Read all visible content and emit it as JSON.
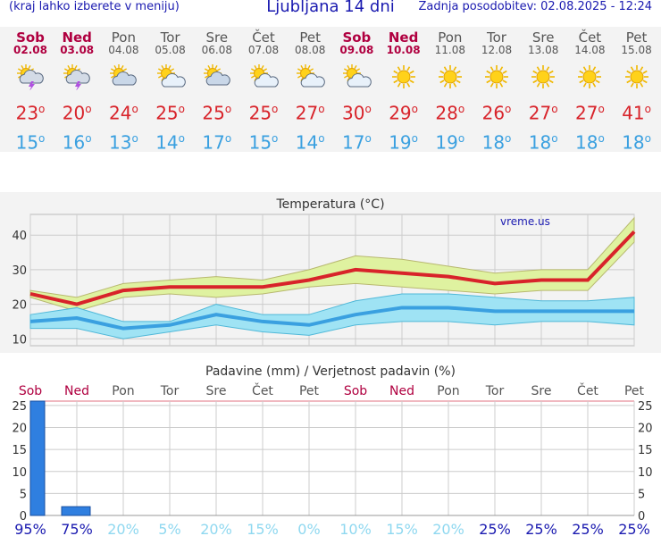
{
  "header": {
    "note": "(kraj lahko izberete v meniju)",
    "title": "Ljubljana 14 dni",
    "updated": "Zadnja posodobitev: 02.08.2025 - 12:24"
  },
  "days": [
    {
      "name": "Sob",
      "date": "02.08",
      "weekend": true,
      "icon": "thunderstorm-icon",
      "tmax": "23",
      "tmin": "15"
    },
    {
      "name": "Ned",
      "date": "03.08",
      "weekend": true,
      "icon": "thunderstorm-icon",
      "tmax": "20",
      "tmin": "16"
    },
    {
      "name": "Pon",
      "date": "04.08",
      "weekend": false,
      "icon": "cloudy-sun-icon",
      "tmax": "24",
      "tmin": "13"
    },
    {
      "name": "Tor",
      "date": "05.08",
      "weekend": false,
      "icon": "partly-cloudy-icon",
      "tmax": "25",
      "tmin": "14"
    },
    {
      "name": "Sre",
      "date": "06.08",
      "weekend": false,
      "icon": "cloudy-sun-icon",
      "tmax": "25",
      "tmin": "17"
    },
    {
      "name": "Čet",
      "date": "07.08",
      "weekend": false,
      "icon": "partly-cloudy-icon",
      "tmax": "25",
      "tmin": "15"
    },
    {
      "name": "Pet",
      "date": "08.08",
      "weekend": false,
      "icon": "partly-cloudy-icon",
      "tmax": "27",
      "tmin": "14"
    },
    {
      "name": "Sob",
      "date": "09.08",
      "weekend": true,
      "icon": "partly-cloudy-icon",
      "tmax": "30",
      "tmin": "17"
    },
    {
      "name": "Ned",
      "date": "10.08",
      "weekend": true,
      "icon": "sun-icon",
      "tmax": "29",
      "tmin": "19"
    },
    {
      "name": "Pon",
      "date": "11.08",
      "weekend": false,
      "icon": "sun-icon",
      "tmax": "28",
      "tmin": "19"
    },
    {
      "name": "Tor",
      "date": "12.08",
      "weekend": false,
      "icon": "sun-icon",
      "tmax": "26",
      "tmin": "18"
    },
    {
      "name": "Sre",
      "date": "13.08",
      "weekend": false,
      "icon": "sun-icon",
      "tmax": "27",
      "tmin": "18"
    },
    {
      "name": "Čet",
      "date": "14.08",
      "weekend": false,
      "icon": "sun-icon",
      "tmax": "27",
      "tmin": "18"
    },
    {
      "name": "Pet",
      "date": "15.08",
      "weekend": false,
      "icon": "sun-icon",
      "tmax": "41",
      "tmin": "18"
    }
  ],
  "colors": {
    "weekend": "#b00040",
    "tmax": "#d8232a",
    "tmin": "#3aa0e0",
    "bar": "#2f7fe0",
    "prob_high": "#1a1ab0",
    "prob_low": "#8fd8f0",
    "maxBand": "#dff2a0",
    "minBand": "#9fe3f4"
  },
  "chart_data": [
    {
      "type": "line",
      "title": "Temperatura (°C)",
      "watermark": "vreme.us",
      "x": [
        "Sob",
        "Ned",
        "Pon",
        "Tor",
        "Sre",
        "Čet",
        "Pet",
        "Sob",
        "Ned",
        "Pon",
        "Tor",
        "Sre",
        "Čet",
        "Pet"
      ],
      "ylim": [
        8,
        46
      ],
      "yticks": [
        10,
        20,
        30,
        40
      ],
      "grid": true,
      "series": [
        {
          "values": [
            23,
            20,
            24,
            25,
            25,
            25,
            27,
            30,
            29,
            28,
            26,
            27,
            27,
            41
          ],
          "band_low": [
            22,
            18,
            22,
            23,
            22,
            23,
            25,
            26,
            25,
            24,
            23,
            24,
            24,
            38
          ],
          "band_high": [
            24,
            22,
            26,
            27,
            28,
            27,
            30,
            34,
            33,
            31,
            29,
            30,
            30,
            45
          ]
        },
        {
          "values": [
            15,
            16,
            13,
            14,
            17,
            15,
            14,
            17,
            19,
            19,
            18,
            18,
            18,
            18
          ],
          "band_low": [
            13,
            13,
            10,
            12,
            14,
            12,
            11,
            14,
            15,
            15,
            14,
            15,
            15,
            14
          ],
          "band_high": [
            17,
            19,
            15,
            15,
            20,
            17,
            17,
            21,
            23,
            23,
            22,
            21,
            21,
            22
          ]
        }
      ]
    },
    {
      "type": "bar",
      "title": "Padavine (mm) / Verjetnost padavin (%)",
      "x": [
        "Sob",
        "Ned",
        "Pon",
        "Tor",
        "Sre",
        "Čet",
        "Pet",
        "Sob",
        "Ned",
        "Pon",
        "Tor",
        "Sre",
        "Čet",
        "Pet"
      ],
      "ylim": [
        0,
        26
      ],
      "yticks": [
        0,
        5,
        10,
        15,
        20,
        25
      ],
      "grid": true,
      "values": [
        26,
        2,
        0,
        0,
        0,
        0,
        0,
        0,
        0,
        0,
        0,
        0,
        0,
        0
      ],
      "probability": [
        "95%",
        "75%",
        "20%",
        "5%",
        "20%",
        "15%",
        "0%",
        "10%",
        "15%",
        "20%",
        "25%",
        "25%",
        "25%",
        "25%"
      ]
    }
  ]
}
